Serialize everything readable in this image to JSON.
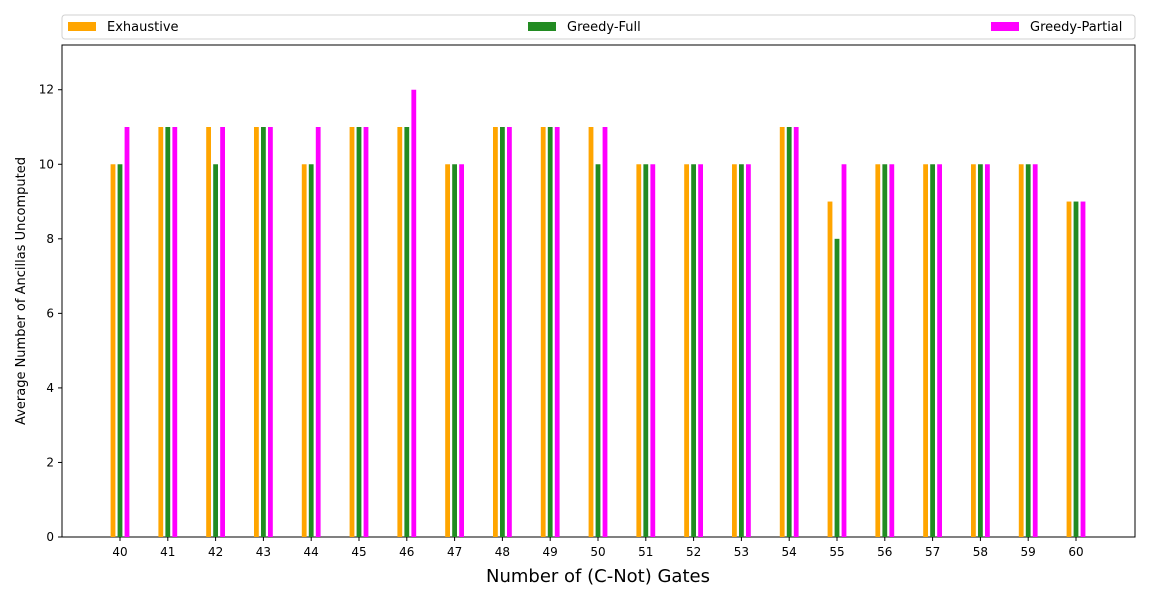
{
  "chart_data": {
    "type": "bar",
    "title": "",
    "xlabel": "Number of (C-Not) Gates",
    "ylabel": "Average Number of Ancillas Uncomputed",
    "categories": [
      "40",
      "41",
      "42",
      "43",
      "44",
      "45",
      "46",
      "47",
      "48",
      "49",
      "50",
      "51",
      "52",
      "53",
      "54",
      "55",
      "56",
      "57",
      "58",
      "59",
      "60"
    ],
    "series": [
      {
        "name": "Exhaustive",
        "color": "#FFA500",
        "values": [
          10,
          11,
          11,
          11,
          10,
          11,
          11,
          10,
          11,
          11,
          11,
          10,
          10,
          10,
          11,
          9,
          10,
          10,
          10,
          10,
          9
        ]
      },
      {
        "name": "Greedy-Full",
        "color": "#228B22",
        "values": [
          10,
          11,
          10,
          11,
          10,
          11,
          11,
          10,
          11,
          11,
          10,
          10,
          10,
          10,
          11,
          8,
          10,
          10,
          10,
          10,
          9
        ]
      },
      {
        "name": "Greedy-Partial",
        "color": "#FF00FF",
        "values": [
          11,
          11,
          11,
          11,
          11,
          11,
          12,
          10,
          11,
          11,
          11,
          10,
          10,
          10,
          11,
          10,
          10,
          10,
          10,
          10,
          9
        ]
      }
    ],
    "yticks": [
      0,
      2,
      4,
      6,
      8,
      10,
      12
    ],
    "ylim": [
      0,
      13.2
    ],
    "grid": false,
    "legend_placement": "top, spanning full width"
  }
}
